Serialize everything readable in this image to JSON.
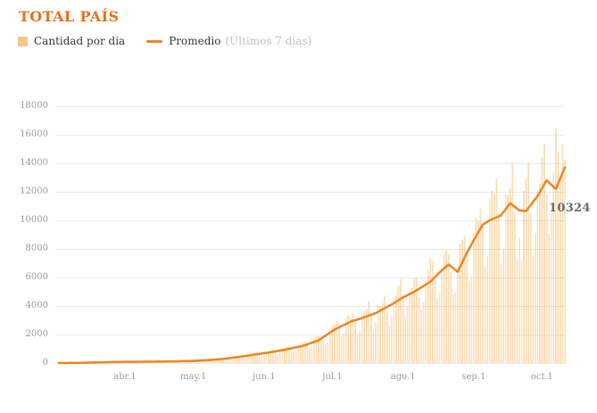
{
  "header": {
    "title": "TOTAL PAÍS"
  },
  "legend": {
    "bar_label": "Cantidad por dia",
    "line_label": "Promedio",
    "line_sublabel": "(Últimos 7 dias)"
  },
  "chart_data": {
    "type": "bar",
    "title": "TOTAL PAÍS",
    "series": [
      {
        "name": "Cantidad por dia",
        "type": "bar",
        "color_rgb": "243,159,45"
      },
      {
        "name": "Promedio (Últimos 7 dias)",
        "type": "line",
        "color": "#ec8a2a"
      }
    ],
    "ylim": [
      0,
      18000
    ],
    "y_ticks": [
      18000,
      16000,
      14000,
      12000,
      10000,
      8000,
      6000,
      4000,
      2000,
      0
    ],
    "x_ticks": [
      {
        "label": "abr.1",
        "day": 29
      },
      {
        "label": "may.1",
        "day": 59
      },
      {
        "label": "jun.1",
        "day": 90
      },
      {
        "label": "jul.1",
        "day": 120
      },
      {
        "label": "ago.1",
        "day": 151
      },
      {
        "label": "sep.1",
        "day": 182
      },
      {
        "label": "oct.1",
        "day": 212
      }
    ],
    "days_total": 223,
    "avg_anchors": [
      [
        0,
        2
      ],
      [
        9,
        15
      ],
      [
        16,
        40
      ],
      [
        23,
        70
      ],
      [
        30,
        90
      ],
      [
        37,
        95
      ],
      [
        44,
        105
      ],
      [
        51,
        120
      ],
      [
        58,
        145
      ],
      [
        65,
        200
      ],
      [
        72,
        290
      ],
      [
        79,
        430
      ],
      [
        86,
        600
      ],
      [
        93,
        760
      ],
      [
        100,
        960
      ],
      [
        107,
        1200
      ],
      [
        114,
        1600
      ],
      [
        121,
        2350
      ],
      [
        128,
        2900
      ],
      [
        133,
        3150
      ],
      [
        139,
        3500
      ],
      [
        146,
        4100
      ],
      [
        151,
        4600
      ],
      [
        156,
        5000
      ],
      [
        163,
        5700
      ],
      [
        168,
        6500
      ],
      [
        171,
        6900
      ],
      [
        175,
        6400
      ],
      [
        178,
        7400
      ],
      [
        182,
        8600
      ],
      [
        186,
        9700
      ],
      [
        189,
        10000
      ],
      [
        194,
        10350
      ],
      [
        198,
        11200
      ],
      [
        202,
        10700
      ],
      [
        205,
        10650
      ],
      [
        210,
        11700
      ],
      [
        214,
        12800
      ],
      [
        218,
        12200
      ],
      [
        222,
        13700
      ]
    ],
    "weekday_factors": [
      1.08,
      1.14,
      1.18,
      1.21,
      0.97,
      0.7,
      0.78
    ],
    "bar_overrides": {
      "199": 14000,
      "203": 7200,
      "218": 16450,
      "219": 14750,
      "220": 12900,
      "221": 15300,
      "222": 14200
    },
    "annotation": {
      "text": "10324"
    },
    "grid": true,
    "legend_position": "top-left"
  }
}
